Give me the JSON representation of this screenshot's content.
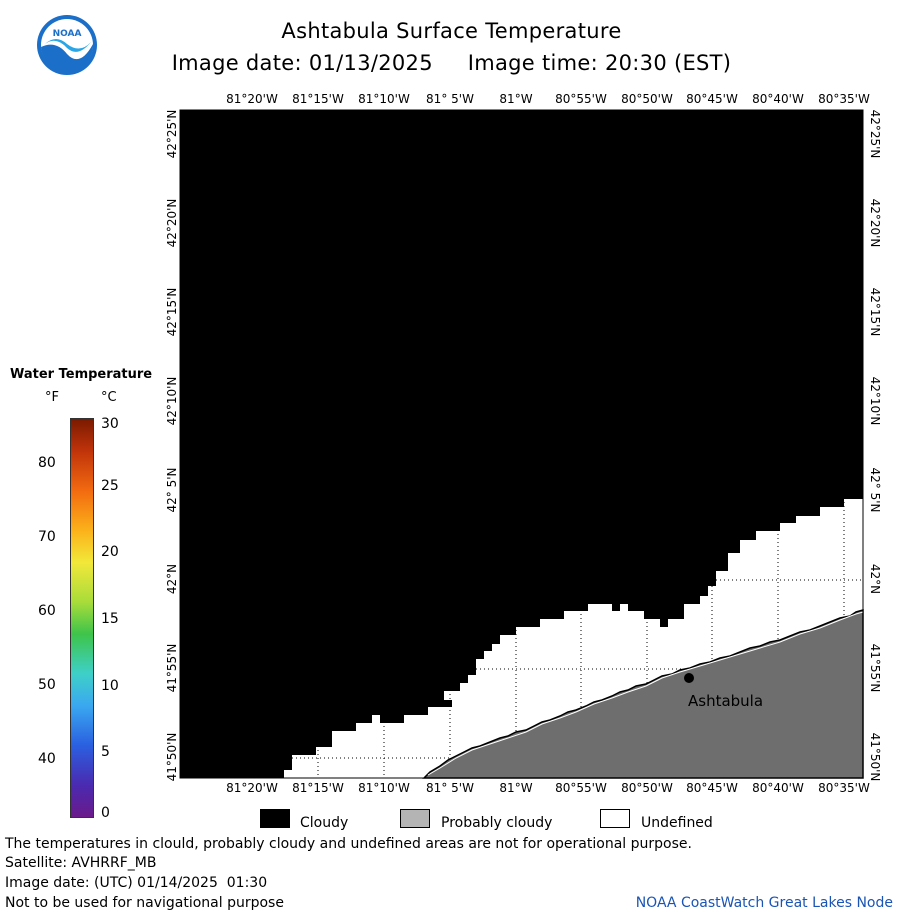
{
  "header": {
    "title": "Ashtabula Surface Temperature",
    "date_line": "Image date: 01/13/2025     Image time: 20:30 (EST)"
  },
  "logo": {
    "text": "NOAA",
    "icon": "noaa-logo-icon",
    "colors": {
      "blue": "#1b6fc8",
      "light": "#2aa6e6"
    }
  },
  "colorbar": {
    "title": "Water Temperature",
    "unit_f": "°F",
    "unit_c": "°C",
    "f_ticks": [
      "80",
      "70",
      "60",
      "50",
      "40"
    ],
    "c_ticks": [
      "30",
      "25",
      "20",
      "15",
      "10",
      "5",
      "0"
    ]
  },
  "map": {
    "lon_labels": [
      "81°20'W",
      "81°15'W",
      "81°10'W",
      "81° 5'W",
      "81°W",
      "80°55'W",
      "80°50'W",
      "80°45'W",
      "80°40'W",
      "80°35'W"
    ],
    "lat_labels": [
      "42°25'N",
      "42°20'N",
      "42°15'N",
      "42°10'N",
      "42° 5'N",
      "42°N",
      "41°55'N",
      "41°50'N"
    ],
    "city": "Ashtabula",
    "colors": {
      "cloudy": "#000000",
      "probably_cloudy": "#6e6e6e",
      "undefined": "#ffffff"
    }
  },
  "legend": {
    "cloudy": "Cloudy",
    "probably_cloudy": "Probably cloudy",
    "undefined": "Undefined"
  },
  "footer": {
    "note": "The temperatures in clould, probably cloudy and undefined areas are not for operational purpose.",
    "satellite": "Satellite: AVHRRF_MB",
    "utc_date": "Image date: (UTC) 01/14/2025  01:30",
    "warning": "Not to be used for navigational purpose",
    "credit": "NOAA CoastWatch Great Lakes Node"
  }
}
